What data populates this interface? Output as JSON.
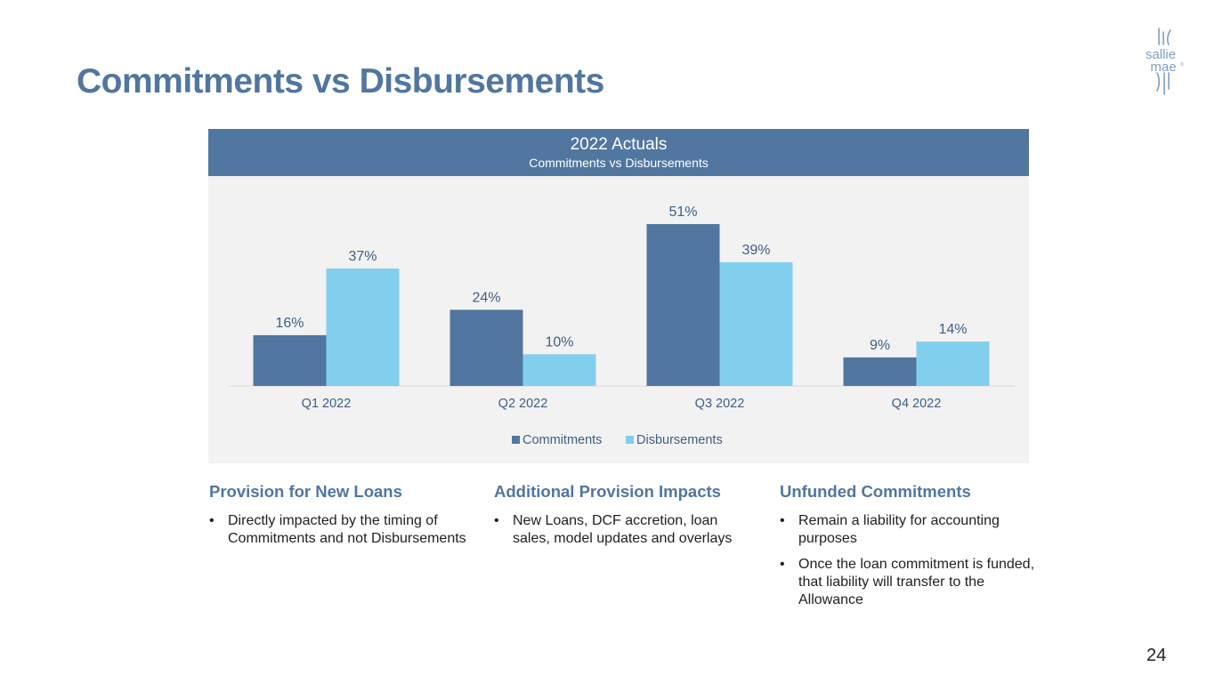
{
  "slide": {
    "title": "Commitments vs Disbursements",
    "page_number": "24",
    "logo": {
      "line1": "sallie",
      "line2": "mae",
      "mark": "®"
    }
  },
  "chart_header": {
    "title": "2022 Actuals",
    "subtitle": "Commitments vs Disbursements"
  },
  "colors": {
    "commitments": "#5176a0",
    "disbursements": "#82cfed",
    "accent": "#5176a0",
    "label": "#3d5f86"
  },
  "chart_data": {
    "type": "bar",
    "title": "2022 Actuals",
    "subtitle": "Commitments vs Disbursements",
    "categories": [
      "Q1 2022",
      "Q2 2022",
      "Q3 2022",
      "Q4 2022"
    ],
    "series": [
      {
        "name": "Commitments",
        "values": [
          16,
          24,
          51,
          9
        ],
        "labels": [
          "16%",
          "24%",
          "51%",
          "9%"
        ]
      },
      {
        "name": "Disbursements",
        "values": [
          37,
          10,
          39,
          14
        ],
        "labels": [
          "37%",
          "10%",
          "39%",
          "14%"
        ]
      }
    ],
    "ylim": [
      0,
      58
    ],
    "legend": "bottom-center",
    "grid": false,
    "xlabel": "",
    "ylabel": ""
  },
  "sections": [
    {
      "heading": "Provision for New Loans",
      "bullets": [
        "Directly impacted by the timing of Commitments and not Disbursements"
      ]
    },
    {
      "heading": "Additional Provision Impacts",
      "bullets": [
        "New Loans, DCF accretion, loan sales, model updates and overlays"
      ]
    },
    {
      "heading": "Unfunded Commitments",
      "bullets": [
        "Remain a liability for accounting purposes",
        "Once the loan commitment is funded, that liability will transfer to the Allowance"
      ]
    }
  ]
}
